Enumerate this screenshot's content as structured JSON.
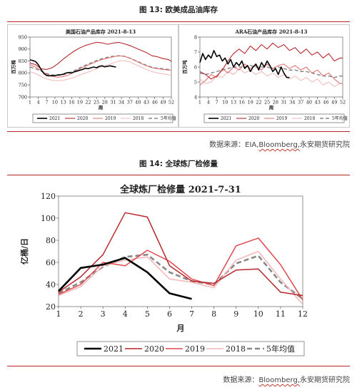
{
  "figure13": {
    "label": "图 13:  欧美成品油库存",
    "source_prefix": "数据来源：EIA,",
    "source_link": "Bloomberg,",
    "source_suffix": "永安期货研究院"
  },
  "figure14": {
    "label": "图 14:  全球炼厂检修量",
    "source_prefix": "数据来源：",
    "source_link": "Bloomberg,",
    "source_suffix": "永安期货研究院"
  },
  "colors": {
    "rule": "#b8272d"
  },
  "chart_data": [
    {
      "id": "us",
      "type": "line",
      "title": "美国石油产品库存 2021-8-13",
      "ylabel": "百万桶",
      "xlabel": "周",
      "ylim": [
        700,
        950
      ],
      "yticks": [
        700,
        750,
        800,
        850,
        900,
        950
      ],
      "xlim": [
        1,
        52
      ],
      "xticks": [
        1,
        4,
        7,
        10,
        13,
        16,
        19,
        22,
        25,
        28,
        31,
        34,
        37,
        40,
        43,
        46,
        49,
        52
      ],
      "grid": false,
      "legend": "bottom",
      "series": [
        {
          "name": "2021",
          "color": "#000000",
          "width": 1.6,
          "dash": "",
          "x": [
            1,
            2,
            3,
            4,
            5,
            6,
            7,
            8,
            9,
            10,
            11,
            12,
            13,
            14,
            15,
            16,
            17,
            18,
            19,
            20,
            21,
            22,
            23,
            24,
            25,
            26,
            27,
            28,
            29,
            30,
            31,
            32
          ],
          "y": [
            855,
            852,
            848,
            835,
            815,
            798,
            790,
            788,
            790,
            789,
            792,
            793,
            795,
            800,
            802,
            800,
            805,
            808,
            812,
            815,
            820,
            818,
            822,
            825,
            822,
            828,
            830,
            826,
            828,
            830,
            827,
            825
          ]
        },
        {
          "name": "2020",
          "color": "#b8272d",
          "width": 1.1,
          "dash": "",
          "x": [
            1,
            3,
            5,
            7,
            9,
            11,
            13,
            15,
            17,
            19,
            21,
            23,
            25,
            27,
            29,
            31,
            33,
            35,
            37,
            39,
            41,
            43,
            45,
            47,
            49,
            51,
            52
          ],
          "y": [
            842,
            835,
            818,
            815,
            822,
            838,
            858,
            876,
            892,
            905,
            915,
            922,
            928,
            926,
            920,
            925,
            928,
            922,
            915,
            905,
            895,
            885,
            872,
            868,
            860,
            856,
            848
          ]
        },
        {
          "name": "2019",
          "color": "#e06b6b",
          "width": 1.0,
          "dash": "",
          "x": [
            1,
            3,
            5,
            7,
            9,
            11,
            13,
            15,
            17,
            19,
            21,
            23,
            25,
            27,
            29,
            31,
            33,
            35,
            37,
            39,
            41,
            43,
            45,
            47,
            49,
            51,
            52
          ],
          "y": [
            835,
            825,
            810,
            795,
            785,
            782,
            785,
            792,
            805,
            818,
            828,
            838,
            848,
            856,
            862,
            868,
            872,
            870,
            862,
            852,
            840,
            830,
            822,
            818,
            815,
            812,
            812
          ]
        },
        {
          "name": "2018",
          "color": "#f2b7b7",
          "width": 1.0,
          "dash": "",
          "x": [
            1,
            3,
            5,
            7,
            9,
            11,
            13,
            15,
            17,
            19,
            21,
            23,
            25,
            27,
            29,
            31,
            33,
            35,
            37,
            39,
            41,
            43,
            45,
            47,
            49,
            51,
            52
          ],
          "y": [
            805,
            798,
            785,
            775,
            770,
            768,
            770,
            775,
            782,
            792,
            800,
            808,
            818,
            826,
            834,
            842,
            850,
            852,
            846,
            836,
            825,
            815,
            806,
            800,
            796,
            793,
            790
          ]
        },
        {
          "name": "5年均值",
          "color": "#888888",
          "width": 1.5,
          "dash": "5,3",
          "x": [
            1,
            3,
            5,
            7,
            9,
            11,
            13,
            15,
            17,
            19,
            21,
            23,
            25,
            27,
            29,
            31,
            33,
            35,
            37,
            39,
            41,
            43,
            45,
            47,
            49,
            51,
            52
          ],
          "y": [
            825,
            818,
            808,
            798,
            792,
            790,
            793,
            800,
            810,
            822,
            832,
            842,
            852,
            860,
            866,
            870,
            872,
            870,
            862,
            852,
            842,
            832,
            824,
            820,
            818,
            815,
            815
          ]
        }
      ]
    },
    {
      "id": "ara",
      "type": "line",
      "title": "ARA石油产品库存 2021-8-13",
      "ylabel": "百万吨",
      "xlabel": "周",
      "ylim": [
        4,
        8
      ],
      "yticks": [
        4,
        5,
        6,
        7,
        8
      ],
      "xlim": [
        1,
        52
      ],
      "xticks": [
        1,
        4,
        7,
        10,
        13,
        16,
        19,
        22,
        25,
        28,
        31,
        34,
        37,
        40,
        43,
        46,
        49,
        52
      ],
      "grid": false,
      "legend": "bottom",
      "series": [
        {
          "name": "2021",
          "color": "#000000",
          "width": 1.6,
          "dash": "",
          "x": [
            1,
            2,
            3,
            4,
            5,
            6,
            7,
            8,
            9,
            10,
            11,
            12,
            13,
            14,
            15,
            16,
            17,
            18,
            19,
            20,
            21,
            22,
            23,
            24,
            25,
            26,
            27,
            28,
            29,
            30,
            31,
            32,
            33
          ],
          "y": [
            6.3,
            6.9,
            6.5,
            6.8,
            6.6,
            7.1,
            6.7,
            6.8,
            6.4,
            6.6,
            6.2,
            6.5,
            6.0,
            6.3,
            6.1,
            6.4,
            5.9,
            6.1,
            5.7,
            6.0,
            6.2,
            5.8,
            6.3,
            6.0,
            6.4,
            6.1,
            5.7,
            5.9,
            5.5,
            6.0,
            5.6,
            5.3,
            5.3
          ]
        },
        {
          "name": "2020",
          "color": "#b8272d",
          "width": 1.1,
          "dash": "",
          "x": [
            1,
            3,
            5,
            7,
            9,
            11,
            13,
            15,
            17,
            19,
            21,
            23,
            25,
            27,
            29,
            31,
            33,
            35,
            37,
            39,
            41,
            43,
            45,
            47,
            49,
            51,
            52
          ],
          "y": [
            5.7,
            5.5,
            5.2,
            5.4,
            5.8,
            6.4,
            6.9,
            7.2,
            6.9,
            7.4,
            7.1,
            7.5,
            7.2,
            7.6,
            7.3,
            7.5,
            7.1,
            7.3,
            6.9,
            7.2,
            6.8,
            7.0,
            6.6,
            6.9,
            6.4,
            6.6,
            6.6
          ]
        },
        {
          "name": "2019",
          "color": "#e06b6b",
          "width": 1.0,
          "dash": "",
          "x": [
            1,
            3,
            5,
            7,
            9,
            11,
            13,
            15,
            17,
            19,
            21,
            23,
            25,
            27,
            29,
            31,
            33,
            35,
            37,
            39,
            41,
            43,
            45,
            47,
            49,
            51,
            52
          ],
          "y": [
            4.8,
            5.1,
            5.5,
            5.3,
            5.9,
            5.6,
            6.0,
            5.8,
            6.2,
            5.9,
            6.1,
            5.8,
            6.2,
            5.9,
            6.1,
            6.2,
            5.9,
            6.1,
            5.8,
            6.0,
            5.6,
            5.8,
            5.4,
            5.6,
            5.2,
            4.9,
            4.9
          ]
        },
        {
          "name": "2018",
          "color": "#f2b7b7",
          "width": 1.0,
          "dash": "",
          "x": [
            1,
            3,
            5,
            7,
            9,
            11,
            13,
            15,
            17,
            19,
            21,
            23,
            25,
            27,
            29,
            31,
            33,
            35,
            37,
            39,
            41,
            43,
            45,
            47,
            49,
            51,
            52
          ],
          "y": [
            5.2,
            4.9,
            5.0,
            5.4,
            5.3,
            5.7,
            5.5,
            5.9,
            5.6,
            5.8,
            5.5,
            5.7,
            5.4,
            5.6,
            5.3,
            5.5,
            5.2,
            5.4,
            5.1,
            5.3,
            5.0,
            5.2,
            4.8,
            5.0,
            4.7,
            4.9,
            4.9
          ]
        },
        {
          "name": "5年均值",
          "color": "#888888",
          "width": 1.5,
          "dash": "5,3",
          "x": [
            1,
            3,
            5,
            7,
            9,
            11,
            13,
            15,
            17,
            19,
            21,
            23,
            25,
            27,
            29,
            31,
            33,
            35,
            37,
            39,
            41,
            43,
            45,
            47,
            49,
            51,
            52
          ],
          "y": [
            5.6,
            5.5,
            5.6,
            5.7,
            5.8,
            5.9,
            6.0,
            6.0,
            6.0,
            6.1,
            6.0,
            6.0,
            6.0,
            5.9,
            6.0,
            5.9,
            5.8,
            5.8,
            5.7,
            5.7,
            5.6,
            5.5,
            5.4,
            5.4,
            5.3,
            5.4,
            5.4
          ]
        }
      ]
    },
    {
      "id": "refinery",
      "type": "line",
      "title": "全球炼厂检修量 2021-7-31",
      "ylabel": "亿桶/日",
      "xlabel": "月",
      "ylim": [
        20,
        120
      ],
      "yticks": [
        20,
        40,
        60,
        80,
        100,
        120
      ],
      "xlim": [
        1,
        12
      ],
      "xticks": [
        1,
        2,
        3,
        4,
        5,
        6,
        7,
        8,
        9,
        10,
        11,
        12
      ],
      "grid": false,
      "legend": "bottom",
      "series": [
        {
          "name": "2021",
          "color": "#000000",
          "width": 2.6,
          "dash": "",
          "x": [
            1,
            2,
            3,
            4,
            5,
            6,
            7
          ],
          "y": [
            34,
            55,
            58,
            64,
            51,
            32,
            27
          ]
        },
        {
          "name": "2020",
          "color": "#b8272d",
          "width": 1.5,
          "dash": "",
          "x": [
            1,
            2,
            3,
            4,
            5,
            6,
            7,
            8,
            9,
            10,
            11,
            12
          ],
          "y": [
            33,
            47,
            67,
            105,
            101,
            57,
            43,
            41,
            53,
            54,
            33,
            30
          ]
        },
        {
          "name": "2019",
          "color": "#e0484d",
          "width": 1.5,
          "dash": "",
          "x": [
            1,
            2,
            3,
            4,
            5,
            6,
            7,
            8,
            9,
            10,
            11,
            12
          ],
          "y": [
            31,
            40,
            60,
            57,
            71,
            61,
            45,
            39,
            75,
            82,
            58,
            26
          ]
        },
        {
          "name": "2018",
          "color": "#f4b6b6",
          "width": 1.5,
          "dash": "",
          "x": [
            1,
            2,
            3,
            4,
            5,
            6,
            7,
            8,
            9,
            10,
            11,
            12
          ],
          "y": [
            30,
            38,
            57,
            62,
            65,
            45,
            42,
            37,
            62,
            70,
            45,
            22
          ]
        },
        {
          "name": "5年均值",
          "color": "#888888",
          "width": 2.6,
          "dash": "7,4",
          "x": [
            1,
            2,
            3,
            4,
            5,
            6,
            7,
            8,
            9,
            10,
            11,
            12
          ],
          "y": [
            32,
            42,
            56,
            65,
            67,
            51,
            43,
            40,
            59,
            66,
            42,
            27
          ]
        }
      ]
    }
  ]
}
